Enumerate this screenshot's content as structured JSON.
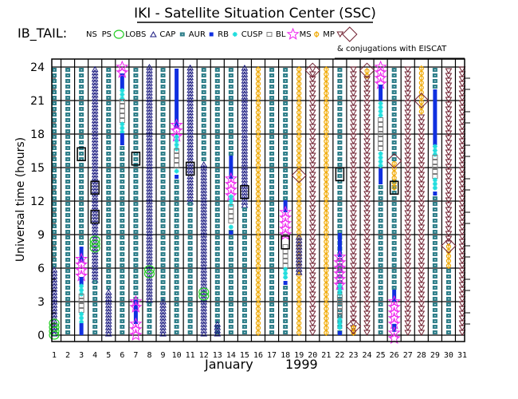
{
  "chart_data": {
    "type": "scatter",
    "title": "IKI - Satellite Situation Center (SSC)",
    "subtitle": "IB_TAIL:",
    "legend_note": "& conjugations with EISCAT",
    "xlabel_month": "January",
    "xlabel_year": "1999",
    "ylabel": "Universal time (hours)",
    "xlim": [
      1,
      31
    ],
    "ylim": [
      0,
      24
    ],
    "y_ticks": [
      "0",
      "3",
      "6",
      "9",
      "12",
      "15",
      "18",
      "21",
      "24"
    ],
    "x_ticks": [
      "1",
      "2",
      "3",
      "4",
      "5",
      "6",
      "7",
      "8",
      "9",
      "10",
      "11",
      "12",
      "13",
      "14",
      "15",
      "16",
      "17",
      "18",
      "19",
      "20",
      "21",
      "22",
      "23",
      "24",
      "25",
      "26",
      "27",
      "28",
      "29",
      "30",
      "31"
    ],
    "legend": [
      {
        "key": "NS",
        "label": "NS",
        "color": "#000000"
      },
      {
        "key": "PS",
        "label": "PS",
        "color": "#22cc22"
      },
      {
        "key": "LOBS",
        "label": "LOBS",
        "color": "#1a1a80"
      },
      {
        "key": "CAP",
        "label": "CAP",
        "color": "#2f7f8a"
      },
      {
        "key": "AUR",
        "label": "AUR",
        "color": "#1030e0"
      },
      {
        "key": "RB",
        "label": "RB",
        "color": "#22dddd"
      },
      {
        "key": "CUSP",
        "label": "CUSP",
        "color": "#808080"
      },
      {
        "key": "BL",
        "label": "BL",
        "color": "#ee22ee"
      },
      {
        "key": "MS",
        "label": "MS",
        "color": "#f0a800"
      },
      {
        "key": "MP",
        "label": "MP",
        "color": "#702030"
      },
      {
        "key": "EISCAT",
        "label": "",
        "color": "#702030"
      }
    ],
    "series": [
      {
        "day": 1,
        "segments": [
          [
            "CAP",
            6,
            24
          ],
          [
            "LOBS",
            0,
            6
          ],
          [
            "PS",
            0,
            1.2
          ]
        ]
      },
      {
        "day": 2,
        "segments": [
          [
            "CAP",
            0,
            24
          ]
        ]
      },
      {
        "day": 3,
        "segments": [
          [
            "CAP",
            8,
            24
          ],
          [
            "AUR",
            6.5,
            8
          ],
          [
            "BL",
            5.3,
            6.8
          ],
          [
            "AUR",
            4.5,
            5.3
          ],
          [
            "RB",
            3.5,
            4.5
          ],
          [
            "CUSP",
            2,
            3.5
          ],
          [
            "RB",
            1,
            2
          ],
          [
            "AUR",
            0,
            1
          ]
        ]
      },
      {
        "day": 4,
        "segments": [
          [
            "LOBS",
            4.8,
            24
          ],
          [
            "CAP",
            0,
            4.8
          ],
          [
            "PS",
            7.8,
            8.8
          ]
        ]
      },
      {
        "day": 5,
        "segments": [
          [
            "CAP",
            4,
            24
          ],
          [
            "LOBS",
            0,
            4
          ]
        ]
      },
      {
        "day": 6,
        "segments": [
          [
            "AUR",
            22,
            23.5
          ],
          [
            "RB",
            21,
            22
          ],
          [
            "CUSP",
            19,
            21
          ],
          [
            "RB",
            18,
            19
          ],
          [
            "AUR",
            17,
            18
          ],
          [
            "CAP",
            0,
            17
          ],
          [
            "BL",
            23.5,
            24.3
          ]
        ]
      },
      {
        "day": 7,
        "segments": [
          [
            "CAP",
            3,
            24
          ],
          [
            "AUR",
            1,
            3
          ],
          [
            "BL",
            0,
            1.2
          ],
          [
            "BL",
            2.5,
            3
          ]
        ]
      },
      {
        "day": 8,
        "segments": [
          [
            "LOBS",
            3,
            24
          ],
          [
            "CAP",
            0,
            3
          ],
          [
            "PS",
            5.5,
            6.2
          ]
        ]
      },
      {
        "day": 9,
        "segments": [
          [
            "CAP",
            3,
            24
          ],
          [
            "LOBS",
            0,
            3
          ]
        ]
      },
      {
        "day": 10,
        "segments": [
          [
            "AUR",
            18.5,
            24
          ],
          [
            "BL",
            17.8,
            19
          ],
          [
            "RB",
            16.5,
            17.8
          ],
          [
            "CUSP",
            15,
            16.5
          ],
          [
            "RB",
            14.5,
            15
          ],
          [
            "AUR",
            14,
            14.5
          ],
          [
            "CAP",
            0,
            14
          ]
        ]
      },
      {
        "day": 11,
        "segments": [
          [
            "LOBS",
            11.8,
            24
          ],
          [
            "CAP",
            0,
            11.8
          ]
        ]
      },
      {
        "day": 12,
        "segments": [
          [
            "CAP",
            15.5,
            24
          ],
          [
            "LOBS",
            0,
            15.5
          ],
          [
            "PS",
            3.5,
            4.2
          ]
        ]
      },
      {
        "day": 13,
        "segments": [
          [
            "CAP",
            0,
            24
          ],
          [
            "LOBS",
            0,
            1.2
          ]
        ]
      },
      {
        "day": 14,
        "segments": [
          [
            "CAP",
            0,
            9.5
          ],
          [
            "AUR",
            14,
            16
          ],
          [
            "BL",
            12.5,
            14
          ],
          [
            "RB",
            11.5,
            12.5
          ],
          [
            "CUSP",
            10,
            11.5
          ],
          [
            "RB",
            9.5,
            10
          ],
          [
            "AUR",
            9,
            9.5
          ],
          [
            "CAP",
            16,
            24
          ]
        ]
      },
      {
        "day": 15,
        "segments": [
          [
            "LOBS",
            11.5,
            24
          ],
          [
            "CAP",
            0,
            11.5
          ]
        ]
      },
      {
        "day": 16,
        "segments": [
          [
            "MS",
            0,
            24
          ]
        ]
      },
      {
        "day": 17,
        "segments": [
          [
            "CAP",
            0,
            24
          ]
        ]
      },
      {
        "day": 18,
        "segments": [
          [
            "AUR",
            11,
            12
          ],
          [
            "BL",
            9,
            11
          ],
          [
            "CUSP",
            6,
            8
          ],
          [
            "RB",
            5,
            6
          ],
          [
            "AUR",
            4.5,
            5
          ],
          [
            "CAP",
            0,
            4.5
          ],
          [
            "CAP",
            12,
            24
          ]
        ]
      },
      {
        "day": 19,
        "segments": [
          [
            "MS",
            0,
            24
          ],
          [
            "LOBS",
            5.5,
            9
          ]
        ]
      },
      {
        "day": 20,
        "segments": [
          [
            "MP",
            0,
            24
          ]
        ]
      },
      {
        "day": 21,
        "segments": [
          [
            "MS",
            0,
            24
          ]
        ]
      },
      {
        "day": 22,
        "segments": [
          [
            "CAP",
            0,
            24
          ],
          [
            "AUR",
            7,
            9
          ],
          [
            "BL",
            4.5,
            7
          ],
          [
            "RB",
            3.5,
            4.5
          ],
          [
            "CUSP",
            1.5,
            3.5
          ],
          [
            "RB",
            0.5,
            1.5
          ],
          [
            "AUR",
            0,
            0.5
          ]
        ]
      },
      {
        "day": 23,
        "segments": [
          [
            "MP",
            0,
            24
          ],
          [
            "MS",
            0,
            0.8
          ]
        ]
      },
      {
        "day": 24,
        "segments": [
          [
            "MS",
            23,
            24
          ],
          [
            "MP",
            0,
            23
          ]
        ]
      },
      {
        "day": 25,
        "segments": [
          [
            "BL",
            22.5,
            24.3
          ],
          [
            "AUR",
            21,
            22.5
          ],
          [
            "RB",
            19.5,
            21
          ],
          [
            "CUSP",
            16.5,
            19.5
          ],
          [
            "RB",
            15,
            16.5
          ],
          [
            "AUR",
            13.5,
            15
          ],
          [
            "CAP",
            0,
            13.5
          ]
        ]
      },
      {
        "day": 26,
        "segments": [
          [
            "CAP",
            4,
            14
          ],
          [
            "AUR",
            3,
            4
          ],
          [
            "BL",
            1,
            3
          ],
          [
            "AUR",
            0.3,
            1
          ],
          [
            "BL",
            -0.3,
            0.3
          ],
          [
            "MS",
            13,
            15.5
          ],
          [
            "CAP",
            15.5,
            24
          ]
        ]
      },
      {
        "day": 27,
        "segments": [
          [
            "MP",
            0,
            24
          ]
        ]
      },
      {
        "day": 28,
        "segments": [
          [
            "MS",
            19.8,
            24
          ],
          [
            "MP",
            0,
            19.8
          ]
        ]
      },
      {
        "day": 29,
        "segments": [
          [
            "CAP",
            22,
            24
          ],
          [
            "AUR",
            17,
            22
          ],
          [
            "RB",
            16,
            17
          ],
          [
            "CUSP",
            14,
            16
          ],
          [
            "RB",
            13,
            14
          ],
          [
            "AUR",
            12.5,
            13
          ],
          [
            "CAP",
            0,
            12.5
          ]
        ]
      },
      {
        "day": 30,
        "segments": [
          [
            "MP",
            8,
            24
          ],
          [
            "MS",
            6,
            8
          ],
          [
            "CAP",
            0,
            6
          ]
        ]
      },
      {
        "day": 31,
        "segments": [
          [
            "MP",
            0,
            24
          ]
        ]
      }
    ],
    "markers": [
      {
        "day": 3,
        "hour": 16.2,
        "type": "NS"
      },
      {
        "day": 4,
        "hour": 13.2,
        "type": "NS"
      },
      {
        "day": 4,
        "hour": 10.6,
        "type": "NS"
      },
      {
        "day": 7,
        "hour": 15.8,
        "type": "NS"
      },
      {
        "day": 11,
        "hour": 14.9,
        "type": "NS"
      },
      {
        "day": 15,
        "hour": 12.8,
        "type": "NS"
      },
      {
        "day": 18,
        "hour": 8.3,
        "type": "NS"
      },
      {
        "day": 22,
        "hour": 14.4,
        "type": "NS"
      },
      {
        "day": 26,
        "hour": 13.2,
        "type": "NS"
      },
      {
        "day": 20,
        "hour": 23.7,
        "type": "EISCAT"
      },
      {
        "day": 19,
        "hour": 14.3,
        "type": "EISCAT"
      },
      {
        "day": 23,
        "hour": 0.8,
        "type": "EISCAT"
      },
      {
        "day": 24,
        "hour": 23.7,
        "type": "EISCAT"
      },
      {
        "day": 26,
        "hour": 15.6,
        "type": "EISCAT"
      },
      {
        "day": 28,
        "hour": 21.0,
        "type": "EISCAT"
      },
      {
        "day": 30,
        "hour": 8.0,
        "type": "EISCAT"
      }
    ]
  }
}
